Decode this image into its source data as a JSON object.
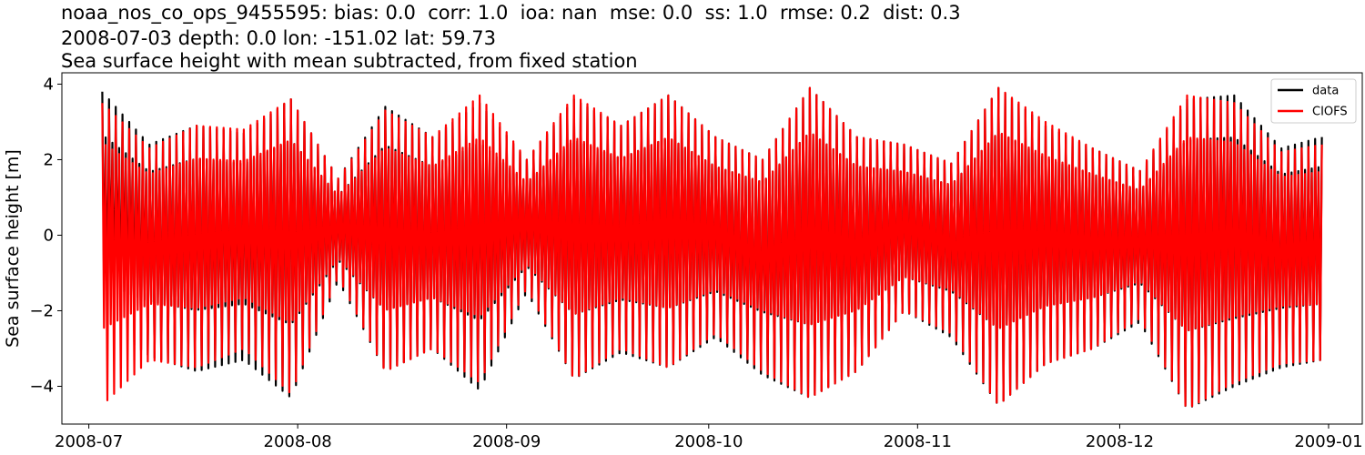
{
  "chart_data": {
    "type": "line",
    "title_lines": [
      "noaa_nos_co_ops_9455595: bias: 0.0  corr: 1.0  ioa: nan  mse: 0.0  ss: 1.0  rmse: 0.2  dist: 0.3",
      "2008-07-03 depth: 0.0 lon: -151.02 lat: 59.73",
      "Sea surface height with mean subtracted, from fixed station"
    ],
    "xlabel": "",
    "ylabel": "Sea surface height [m]",
    "x_start": "2008-07-03",
    "x_end": "2008-12-31",
    "xlim": [
      "2008-06-27",
      "2009-01-06"
    ],
    "ylim": [
      -5.0,
      4.3
    ],
    "x_ticks": [
      "2008-07",
      "2008-08",
      "2008-09",
      "2008-10",
      "2008-11",
      "2008-12",
      "2009-01"
    ],
    "y_ticks": [
      -4,
      -2,
      0,
      2,
      4
    ],
    "y_tick_labels": [
      "−4",
      "−2",
      "0",
      "2",
      "4"
    ],
    "legend_position": "top-right",
    "series": [
      {
        "name": "data",
        "color": "#000000",
        "envelope_dates": [
          "2008-07-03",
          "2008-07-10",
          "2008-07-17",
          "2008-07-24",
          "2008-07-31",
          "2008-08-07",
          "2008-08-14",
          "2008-08-21",
          "2008-08-28",
          "2008-09-04",
          "2008-09-11",
          "2008-09-18",
          "2008-09-25",
          "2008-10-02",
          "2008-10-09",
          "2008-10-16",
          "2008-10-23",
          "2008-10-30",
          "2008-11-06",
          "2008-11-13",
          "2008-11-20",
          "2008-11-27",
          "2008-12-04",
          "2008-12-11",
          "2008-12-18",
          "2008-12-25",
          "2008-12-31"
        ],
        "max_values": [
          3.8,
          2.4,
          2.9,
          2.7,
          3.6,
          1.5,
          3.4,
          2.6,
          3.5,
          2.0,
          3.6,
          2.9,
          3.7,
          2.6,
          2.0,
          3.9,
          2.6,
          2.4,
          1.9,
          3.9,
          2.9,
          2.3,
          1.7,
          3.6,
          3.7,
          2.3,
          2.6
        ],
        "min_values": [
          -2.3,
          -3.2,
          -3.6,
          -3.3,
          -4.3,
          -1.2,
          -3.6,
          -3.0,
          -4.1,
          -1.5,
          -3.8,
          -3.1,
          -3.5,
          -2.7,
          -3.7,
          -4.3,
          -3.6,
          -2.0,
          -2.7,
          -4.5,
          -3.4,
          -3.0,
          -2.3,
          -4.6,
          -4.0,
          -3.5,
          -3.3
        ]
      },
      {
        "name": "CIOFS",
        "color": "#ff0000",
        "envelope_dates": [
          "2008-07-03",
          "2008-07-10",
          "2008-07-17",
          "2008-07-24",
          "2008-07-31",
          "2008-08-07",
          "2008-08-14",
          "2008-08-21",
          "2008-08-28",
          "2008-09-04",
          "2008-09-11",
          "2008-09-18",
          "2008-09-25",
          "2008-10-02",
          "2008-10-09",
          "2008-10-16",
          "2008-10-23",
          "2008-10-30",
          "2008-11-06",
          "2008-11-13",
          "2008-11-20",
          "2008-11-27",
          "2008-12-04",
          "2008-12-11",
          "2008-12-18",
          "2008-12-25",
          "2008-12-31"
        ],
        "max_values": [
          3.5,
          2.3,
          2.9,
          2.8,
          3.6,
          1.5,
          3.3,
          2.6,
          3.7,
          2.0,
          3.7,
          2.9,
          3.7,
          2.6,
          2.0,
          3.9,
          2.6,
          2.4,
          1.9,
          3.9,
          3.0,
          2.3,
          1.7,
          3.7,
          3.5,
          2.2,
          2.4
        ],
        "min_values": [
          -4.5,
          -3.3,
          -3.5,
          -3.0,
          -4.2,
          -1.1,
          -3.6,
          -3.0,
          -3.9,
          -1.4,
          -3.8,
          -3.0,
          -3.5,
          -2.6,
          -3.6,
          -4.3,
          -3.6,
          -2.0,
          -2.6,
          -4.5,
          -3.4,
          -3.0,
          -2.2,
          -4.6,
          -3.9,
          -3.4,
          -3.3
        ]
      }
    ]
  }
}
